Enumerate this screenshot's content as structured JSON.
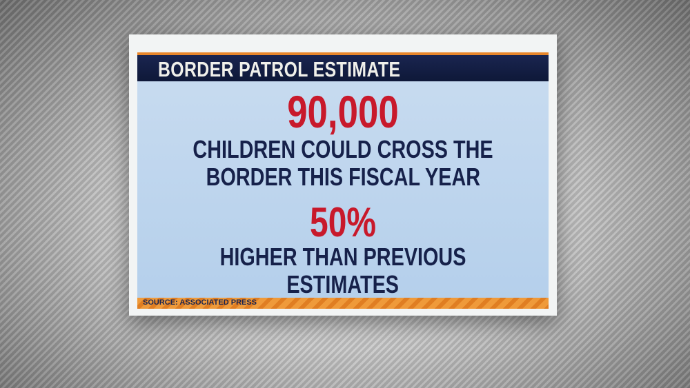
{
  "header": {
    "title": "BORDER PATROL ESTIMATE"
  },
  "facts": [
    {
      "figure": "90,000",
      "lines": [
        "CHILDREN COULD CROSS THE",
        "BORDER THIS FISCAL YEAR"
      ]
    },
    {
      "figure": "50%",
      "lines": [
        "HIGHER THAN PREVIOUS",
        "ESTIMATES"
      ]
    }
  ],
  "source": "SOURCE: ASSOCIATED PRESS"
}
